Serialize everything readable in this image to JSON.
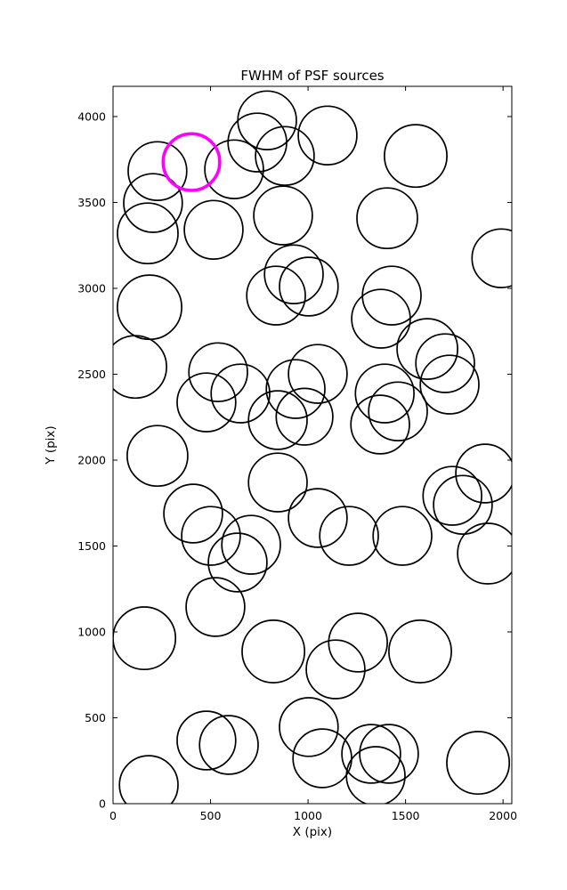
{
  "figure": {
    "background": "#ffffff"
  },
  "chart_data": {
    "type": "scatter",
    "title": "FWHM of PSF sources",
    "xlabel": "X (pix)",
    "ylabel": "Y (pix)",
    "xlim": [
      0,
      2045
    ],
    "ylim": [
      0,
      4176
    ],
    "xticks": [
      0,
      500,
      1000,
      1500,
      2000
    ],
    "yticks": [
      0,
      500,
      1000,
      1500,
      2000,
      2500,
      3000,
      3500,
      4000
    ],
    "grid": false,
    "legend": "none",
    "marker": "open-circle",
    "frame_color": "#000000",
    "series": [
      {
        "name": "psf-sources",
        "color": "#000000",
        "linewidth": 1.7,
        "points": [
          {
            "x": 740,
            "y": 3849,
            "r": 150
          },
          {
            "x": 790,
            "y": 3978,
            "r": 150
          },
          {
            "x": 621,
            "y": 3693,
            "r": 150
          },
          {
            "x": 881,
            "y": 3771,
            "r": 150
          },
          {
            "x": 228,
            "y": 3683,
            "r": 150
          },
          {
            "x": 1100,
            "y": 3890,
            "r": 150
          },
          {
            "x": 1552,
            "y": 3771,
            "r": 160
          },
          {
            "x": 205,
            "y": 3497,
            "r": 150
          },
          {
            "x": 178,
            "y": 3320,
            "r": 155
          },
          {
            "x": 516,
            "y": 3341,
            "r": 150
          },
          {
            "x": 872,
            "y": 3424,
            "r": 150
          },
          {
            "x": 1406,
            "y": 3408,
            "r": 155
          },
          {
            "x": 1991,
            "y": 3175,
            "r": 150
          },
          {
            "x": 927,
            "y": 3082,
            "r": 150
          },
          {
            "x": 1004,
            "y": 3010,
            "r": 150
          },
          {
            "x": 836,
            "y": 2958,
            "r": 150
          },
          {
            "x": 187,
            "y": 2890,
            "r": 165
          },
          {
            "x": 1429,
            "y": 2958,
            "r": 150
          },
          {
            "x": 1374,
            "y": 2823,
            "r": 150
          },
          {
            "x": 1612,
            "y": 2647,
            "r": 155
          },
          {
            "x": 1703,
            "y": 2564,
            "r": 150
          },
          {
            "x": 114,
            "y": 2543,
            "r": 160
          },
          {
            "x": 539,
            "y": 2512,
            "r": 150
          },
          {
            "x": 653,
            "y": 2388,
            "r": 150
          },
          {
            "x": 479,
            "y": 2336,
            "r": 150
          },
          {
            "x": 936,
            "y": 2414,
            "r": 150
          },
          {
            "x": 1050,
            "y": 2502,
            "r": 150
          },
          {
            "x": 1393,
            "y": 2388,
            "r": 150
          },
          {
            "x": 1726,
            "y": 2440,
            "r": 150
          },
          {
            "x": 845,
            "y": 2233,
            "r": 150
          },
          {
            "x": 982,
            "y": 2253,
            "r": 145
          },
          {
            "x": 1370,
            "y": 2207,
            "r": 150
          },
          {
            "x": 1461,
            "y": 2284,
            "r": 150
          },
          {
            "x": 228,
            "y": 2025,
            "r": 155
          },
          {
            "x": 845,
            "y": 1870,
            "r": 150
          },
          {
            "x": 1908,
            "y": 1922,
            "r": 150
          },
          {
            "x": 1740,
            "y": 1792,
            "r": 150
          },
          {
            "x": 1794,
            "y": 1740,
            "r": 150
          },
          {
            "x": 411,
            "y": 1689,
            "r": 150
          },
          {
            "x": 502,
            "y": 1559,
            "r": 150
          },
          {
            "x": 1050,
            "y": 1663,
            "r": 150
          },
          {
            "x": 1210,
            "y": 1559,
            "r": 150
          },
          {
            "x": 708,
            "y": 1507,
            "r": 150
          },
          {
            "x": 639,
            "y": 1404,
            "r": 150
          },
          {
            "x": 1484,
            "y": 1559,
            "r": 150
          },
          {
            "x": 1922,
            "y": 1456,
            "r": 155
          },
          {
            "x": 160,
            "y": 963,
            "r": 160
          },
          {
            "x": 525,
            "y": 1145,
            "r": 150
          },
          {
            "x": 822,
            "y": 886,
            "r": 160
          },
          {
            "x": 1141,
            "y": 782,
            "r": 150
          },
          {
            "x": 1256,
            "y": 938,
            "r": 150
          },
          {
            "x": 1575,
            "y": 886,
            "r": 160
          },
          {
            "x": 479,
            "y": 368,
            "r": 150
          },
          {
            "x": 594,
            "y": 342,
            "r": 150
          },
          {
            "x": 1004,
            "y": 446,
            "r": 150
          },
          {
            "x": 1073,
            "y": 264,
            "r": 150
          },
          {
            "x": 1324,
            "y": 290,
            "r": 150
          },
          {
            "x": 1415,
            "y": 290,
            "r": 150
          },
          {
            "x": 1347,
            "y": 161,
            "r": 150
          },
          {
            "x": 1872,
            "y": 238,
            "r": 160
          },
          {
            "x": 183,
            "y": 109,
            "r": 150
          }
        ]
      },
      {
        "name": "highlighted-source",
        "color": "#ff00ff",
        "linewidth": 3.6,
        "points": [
          {
            "x": 402,
            "y": 3735,
            "r": 145
          }
        ]
      }
    ]
  }
}
